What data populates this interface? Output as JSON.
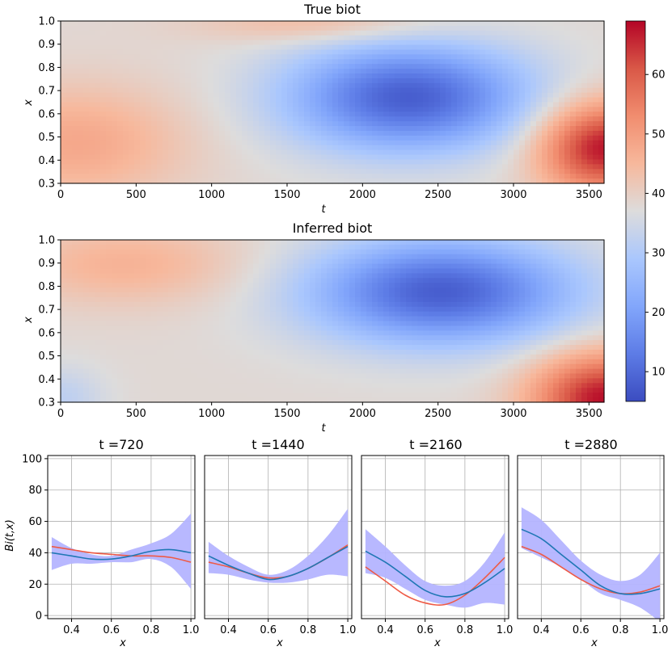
{
  "chart_data": [
    {
      "type": "heatmap",
      "title": "True biot",
      "xlabel": "t",
      "ylabel": "x",
      "xlim": [
        0,
        3600
      ],
      "ylim": [
        0.3,
        1.0
      ],
      "xticks": [
        "0",
        "500",
        "1000",
        "1500",
        "2000",
        "2500",
        "3000",
        "3500"
      ],
      "yticks": [
        "0.3",
        "0.4",
        "0.5",
        "0.6",
        "0.7",
        "0.8",
        "0.9",
        "1.0"
      ],
      "grid": false,
      "color_scale": "coolwarm",
      "value_range": [
        5,
        69
      ],
      "hotspots": [
        {
          "t": 2300,
          "x": 0.67,
          "value": 8
        },
        {
          "t": 3600,
          "x": 0.45,
          "value": 69
        },
        {
          "t": 200,
          "x": 0.45,
          "value": 48
        },
        {
          "t": 1700,
          "x": 0.95,
          "value": 45
        }
      ]
    },
    {
      "type": "heatmap",
      "title": "Inferred biot",
      "xlabel": "t",
      "ylabel": "x",
      "xlim": [
        0,
        3600
      ],
      "ylim": [
        0.3,
        1.0
      ],
      "xticks": [
        "0",
        "500",
        "1000",
        "1500",
        "2000",
        "2500",
        "3000",
        "3500"
      ],
      "yticks": [
        "0.3",
        "0.4",
        "0.5",
        "0.6",
        "0.7",
        "0.8",
        "0.9",
        "1.0"
      ],
      "grid": false,
      "color_scale": "coolwarm",
      "value_range": [
        5,
        69
      ],
      "hotspots": [
        {
          "t": 2550,
          "x": 0.78,
          "value": 10
        },
        {
          "t": 3600,
          "x": 0.32,
          "value": 69
        },
        {
          "t": 500,
          "x": 0.88,
          "value": 46
        },
        {
          "t": 0,
          "x": 0.3,
          "value": 33
        }
      ]
    },
    {
      "type": "colorbar",
      "ticks": [
        "10",
        "20",
        "30",
        "40",
        "50",
        "60"
      ],
      "tick_values": [
        10,
        20,
        30,
        40,
        50,
        60
      ],
      "range": [
        5,
        69
      ]
    },
    {
      "type": "line",
      "title": "t =720",
      "xlabel": "x",
      "ylabel": "Bi(t,x)",
      "xlim": [
        0.28,
        1.02
      ],
      "ylim": [
        -2,
        102
      ],
      "xticks": [
        "0.4",
        "0.6",
        "0.8",
        "1.0"
      ],
      "yticks": [
        "0",
        "20",
        "40",
        "60",
        "80",
        "100"
      ],
      "grid": true,
      "x": [
        0.3,
        0.4,
        0.5,
        0.6,
        0.7,
        0.8,
        0.9,
        1.0
      ],
      "series": [
        {
          "role": "inferred",
          "color": "#1f77b4",
          "values": [
            40,
            38,
            36,
            36,
            38,
            41,
            42,
            40
          ]
        },
        {
          "role": "true",
          "color": "#ee5a46",
          "values": [
            44,
            42,
            40,
            39,
            38,
            38,
            37,
            34
          ]
        },
        {
          "role": "band",
          "color": "#b4b4ff",
          "upper": [
            50,
            43,
            39,
            38,
            42,
            46,
            52,
            65
          ],
          "lower": [
            29,
            33,
            33,
            34,
            34,
            36,
            31,
            17
          ]
        }
      ]
    },
    {
      "type": "line",
      "title": "t =1440",
      "xlabel": "x",
      "xlim": [
        0.28,
        1.02
      ],
      "ylim": [
        -2,
        102
      ],
      "xticks": [
        "0.4",
        "0.6",
        "0.8",
        "1.0"
      ],
      "grid": true,
      "x": [
        0.3,
        0.4,
        0.5,
        0.6,
        0.7,
        0.8,
        0.9,
        1.0
      ],
      "series": [
        {
          "role": "inferred",
          "color": "#1f77b4",
          "values": [
            38,
            32,
            27,
            23,
            25,
            30,
            37,
            44
          ]
        },
        {
          "role": "true",
          "color": "#ee5a46",
          "values": [
            34,
            31,
            27,
            24,
            25,
            30,
            37,
            45
          ]
        },
        {
          "role": "band",
          "color": "#b4b4ff",
          "upper": [
            47,
            38,
            31,
            26,
            29,
            38,
            51,
            68
          ],
          "lower": [
            27,
            26,
            23,
            21,
            21,
            23,
            26,
            25
          ]
        }
      ]
    },
    {
      "type": "line",
      "title": "t =2160",
      "xlabel": "x",
      "xlim": [
        0.28,
        1.02
      ],
      "ylim": [
        -2,
        102
      ],
      "xticks": [
        "0.4",
        "0.6",
        "0.8",
        "1.0"
      ],
      "grid": true,
      "x": [
        0.3,
        0.4,
        0.5,
        0.6,
        0.7,
        0.8,
        0.9,
        1.0
      ],
      "series": [
        {
          "role": "inferred",
          "color": "#1f77b4",
          "values": [
            41,
            34,
            25,
            16,
            12,
            14,
            21,
            30
          ]
        },
        {
          "role": "true",
          "color": "#ee5a46",
          "values": [
            31,
            22,
            13,
            8,
            7,
            13,
            24,
            37
          ]
        },
        {
          "role": "band",
          "color": "#b4b4ff",
          "upper": [
            55,
            44,
            32,
            22,
            19,
            22,
            34,
            53
          ],
          "lower": [
            27,
            24,
            17,
            10,
            7,
            5,
            8,
            7
          ]
        }
      ]
    },
    {
      "type": "line",
      "title": "t =2880",
      "xlabel": "x",
      "xlim": [
        0.28,
        1.02
      ],
      "ylim": [
        -2,
        102
      ],
      "xticks": [
        "0.4",
        "0.6",
        "0.8",
        "1.0"
      ],
      "grid": true,
      "x": [
        0.3,
        0.4,
        0.5,
        0.6,
        0.7,
        0.8,
        0.9,
        1.0
      ],
      "series": [
        {
          "role": "inferred",
          "color": "#1f77b4",
          "values": [
            55,
            49,
            39,
            29,
            19,
            14,
            14,
            17
          ]
        },
        {
          "role": "true",
          "color": "#ee5a46",
          "values": [
            44,
            39,
            31,
            23,
            17,
            14,
            15,
            19
          ]
        },
        {
          "role": "band",
          "color": "#b4b4ff",
          "upper": [
            69,
            61,
            48,
            35,
            26,
            22,
            26,
            40
          ],
          "lower": [
            43,
            37,
            31,
            23,
            14,
            10,
            5,
            -4
          ]
        }
      ]
    }
  ]
}
